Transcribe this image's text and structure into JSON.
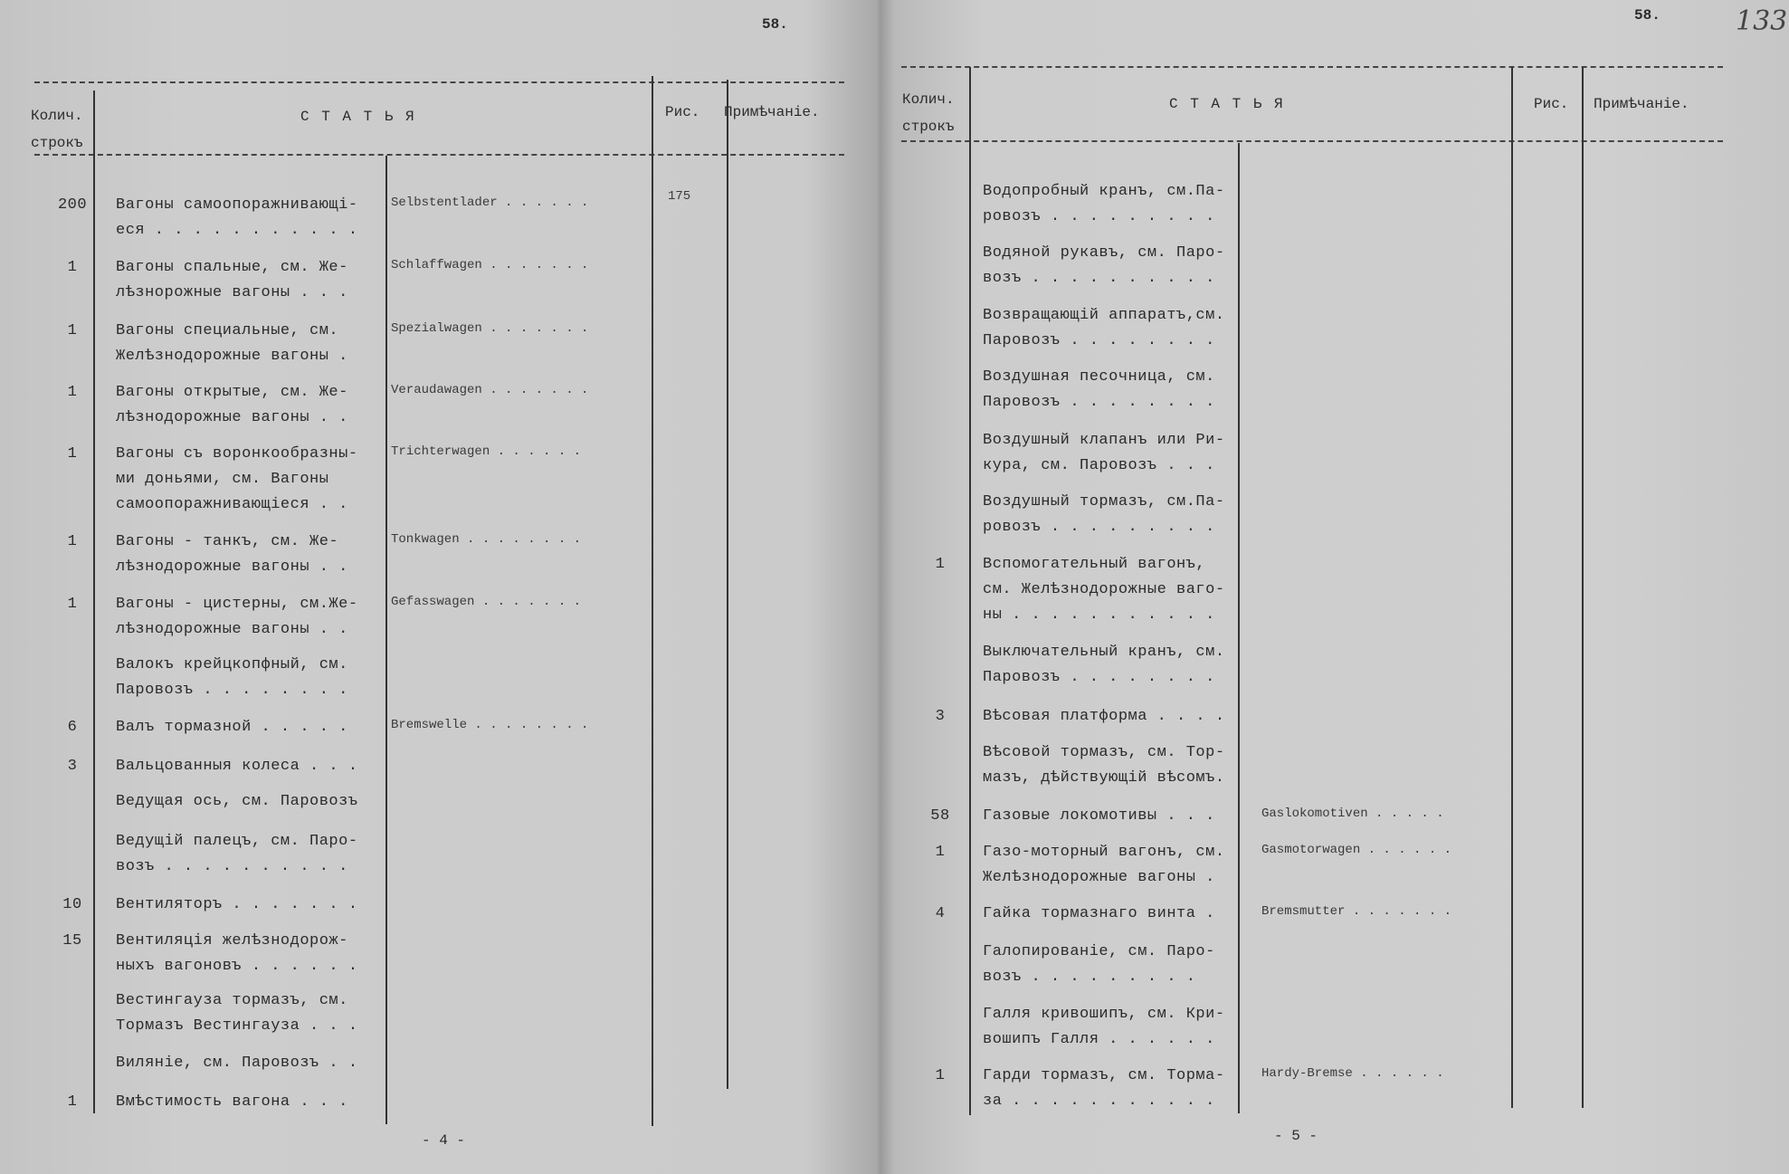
{
  "left_page": {
    "page_number_top": "58.",
    "page_number_bottom": "- 4 -",
    "header": {
      "qty": "Колич.\nстрокъ",
      "article": "С Т А Т Ь Я",
      "fig": "Рис.",
      "note": "Примѣчаніе."
    },
    "rows": [
      {
        "qty": "200",
        "ru": [
          "Вагоны самоопоражнивающі-",
          "еся . . . . . . . . . . ."
        ],
        "de": "Selbstentlader . . . . . .",
        "fig": "175"
      },
      {
        "qty": "1",
        "ru": [
          "Вагоны спальные, см. Же-",
          "лѣзнорожные вагоны . .  ."
        ],
        "de": "Schlaffwagen . . . . . . .",
        "fig": ""
      },
      {
        "qty": "1",
        "ru": [
          "Вагоны специальные, см.",
          "Желѣзнодорожные вагоны  ."
        ],
        "de": "Spezialwagen . . . . . . .",
        "fig": ""
      },
      {
        "qty": "1",
        "ru": [
          "Вагоны открытые, см. Же-",
          "лѣзнодорожные вагоны .  ."
        ],
        "de": "Veraudawagen . . . . . . .",
        "fig": ""
      },
      {
        "qty": "1",
        "ru": [
          "Вагоны съ воронкообразны-",
          "ми доньями, см. Вагоны",
          "самоопоражнивающіеся .  ."
        ],
        "de": "Trichterwagen . . . . .  .",
        "fig": ""
      },
      {
        "qty": "1",
        "ru": [
          "Вагоны - танкъ, см. Же-",
          "лѣзнодорожные вагоны .  ."
        ],
        "de": "Tonkwagen . . . . . . . .",
        "fig": ""
      },
      {
        "qty": "1",
        "ru": [
          "Вагоны - цистерны, см.Же-",
          "лѣзнодорожные вагоны .  ."
        ],
        "de": "Gefasswagen . . . . . .  .",
        "fig": ""
      },
      {
        "qty": "",
        "ru": [
          "Валокъ крейцкопфный, см.",
          "Паровозъ . . . . . . .  ."
        ],
        "de": "",
        "fig": ""
      },
      {
        "qty": "6",
        "ru": [
          "Валъ тормазной  . . . . ."
        ],
        "de": "Bremswelle . . . . . . . .",
        "fig": ""
      },
      {
        "qty": "3",
        "ru": [
          "Вальцованныя колеса . . ."
        ],
        "de": "",
        "fig": ""
      },
      {
        "qty": "",
        "ru": [
          "Ведущая ось, см. Паровозъ"
        ],
        "de": "",
        "fig": ""
      },
      {
        "qty": "",
        "ru": [
          "Ведущій палецъ, см. Паро-",
          "возъ . . . . . . . . .  ."
        ],
        "de": "",
        "fig": ""
      },
      {
        "qty": "10",
        "ru": [
          "Вентиляторъ . . . . . . ."
        ],
        "de": "",
        "fig": ""
      },
      {
        "qty": "15",
        "ru": [
          "Вентиляція желѣзнодорож-",
          "ныхъ вагоновъ . . . . . ."
        ],
        "de": "",
        "fig": ""
      },
      {
        "qty": "",
        "ru": [
          "Вестингауза тормазъ, см.",
          "Тормазъ Вестингауза . . ."
        ],
        "de": "",
        "fig": ""
      },
      {
        "qty": "",
        "ru": [
          "Виляніе, см. Паровозъ . ."
        ],
        "de": "",
        "fig": ""
      },
      {
        "qty": "1",
        "ru": [
          "Вмѣстимость вагона . .  ."
        ],
        "de": "",
        "fig": ""
      }
    ]
  },
  "right_page": {
    "page_number_top": "58.",
    "page_number_bottom": "- 5 -",
    "handwritten_number": "133",
    "header": {
      "qty": "Колич.\nстрокъ",
      "article": "С Т А Т Ь Я",
      "fig": "Рис.",
      "note": "Примѣчаніе."
    },
    "rows": [
      {
        "qty": "",
        "ru": [
          "Водопробный кранъ, см.Па-",
          "ровозъ . . . . . . . .  ."
        ],
        "de": ""
      },
      {
        "qty": "",
        "ru": [
          "Водяной рукавъ, см. Паро-",
          "возъ . . . . . . . . .  ."
        ],
        "de": ""
      },
      {
        "qty": "",
        "ru": [
          "Возвращающій аппаратъ,см.",
          "Паровозъ . . . . . . .  ."
        ],
        "de": ""
      },
      {
        "qty": "",
        "ru": [
          "Воздушная песочница, см.",
          "Паровозъ . . . . . . .  ."
        ],
        "de": ""
      },
      {
        "qty": "",
        "ru": [
          "Воздушный клапанъ или Ри-",
          "кура, см. Паровозъ  . . ."
        ],
        "de": ""
      },
      {
        "qty": "",
        "ru": [
          "Воздушный тормазъ, см.Па-",
          "ровозъ . . . . . . . .  ."
        ],
        "de": ""
      },
      {
        "qty": "1",
        "ru": [
          "Вспомогательный вагонъ,",
          "см. Желѣзнодорожные ваго-",
          "ны . . . . . . . . . .  ."
        ],
        "de": ""
      },
      {
        "qty": "",
        "ru": [
          "Выключательный кранъ, см.",
          "Паровозъ . . . . . . .  ."
        ],
        "de": ""
      },
      {
        "qty": "3",
        "ru": [
          "Вѣсовая платформа . . .  ."
        ],
        "de": ""
      },
      {
        "qty": "",
        "ru": [
          "Вѣсовой тормазъ, см. Тор-",
          "мазъ, дѣйствующій вѣсомъ."
        ],
        "de": ""
      },
      {
        "qty": "58",
        "ru": [
          "Газовые локомотивы . .  ."
        ],
        "de": "Gaslokomotiven . . . . ."
      },
      {
        "qty": "1",
        "ru": [
          "Газо-моторный вагонъ, см.",
          "Желѣзнодорожные вагоны  ."
        ],
        "de": "Gasmotorwagen . . . . . ."
      },
      {
        "qty": "4",
        "ru": [
          "Гайка тормазнаго винта  ."
        ],
        "de": "Bremsmutter . . . . . . ."
      },
      {
        "qty": "",
        "ru": [
          "Галопированіе, см. Паро-",
          "возъ . . . . . . .   .  ."
        ],
        "de": ""
      },
      {
        "qty": "",
        "ru": [
          "Галля кривошипъ, см. Кри-",
          "вошипъ Галля . . . . .  ."
        ],
        "de": ""
      },
      {
        "qty": "1",
        "ru": [
          "Гарди тормазъ, см. Торма-",
          "за . . . . . . . . . .  ."
        ],
        "de": "Hardy-Bremse . . . . . ."
      }
    ]
  }
}
